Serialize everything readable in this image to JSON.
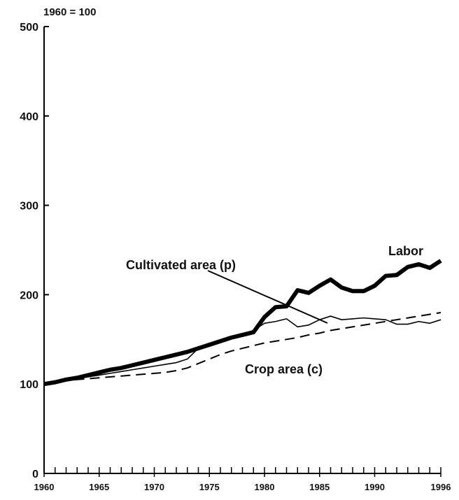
{
  "chart_data": {
    "type": "line",
    "ylabel": "1960 = 100",
    "x": [
      1960,
      1961,
      1962,
      1963,
      1964,
      1965,
      1966,
      1967,
      1968,
      1969,
      1970,
      1971,
      1972,
      1973,
      1974,
      1975,
      1976,
      1977,
      1978,
      1979,
      1980,
      1981,
      1982,
      1983,
      1984,
      1985,
      1986,
      1987,
      1988,
      1989,
      1990,
      1991,
      1992,
      1993,
      1994,
      1995,
      1996
    ],
    "series": [
      {
        "name": "Labor",
        "color": "#000000",
        "style": "thick",
        "values": [
          100,
          102,
          105,
          107,
          110,
          113,
          116,
          118,
          121,
          124,
          127,
          130,
          133,
          136,
          140,
          144,
          148,
          152,
          155,
          158,
          175,
          186,
          187,
          205,
          202,
          210,
          217,
          208,
          204,
          204,
          210,
          221,
          222,
          231,
          234,
          230,
          238
        ]
      },
      {
        "name": "Cultivated area (p)",
        "color": "#000000",
        "style": "thin",
        "values": [
          100,
          103,
          105,
          107,
          108,
          110,
          112,
          114,
          116,
          118,
          120,
          122,
          124,
          128,
          140,
          145,
          149,
          152,
          156,
          160,
          168,
          170,
          173,
          164,
          166,
          172,
          176,
          172,
          173,
          174,
          173,
          172,
          167,
          167,
          170,
          168,
          172
        ]
      },
      {
        "name": "Crop area (c)",
        "color": "#000000",
        "style": "dashed",
        "values": [
          100,
          102,
          104,
          105,
          106,
          107,
          108,
          109,
          110,
          111,
          112,
          113,
          115,
          118,
          123,
          128,
          133,
          137,
          140,
          143,
          146,
          148,
          150,
          152,
          155,
          157,
          160,
          162,
          164,
          166,
          168,
          170,
          172,
          174,
          176,
          178,
          180
        ]
      }
    ],
    "xlim": [
      1960,
      1996
    ],
    "xticks": [
      1960,
      1965,
      1970,
      1975,
      1980,
      1985,
      1990,
      1996
    ],
    "ylim": [
      0,
      500
    ],
    "yticks": [
      0,
      100,
      200,
      300,
      400,
      500
    ],
    "grid": false
  }
}
